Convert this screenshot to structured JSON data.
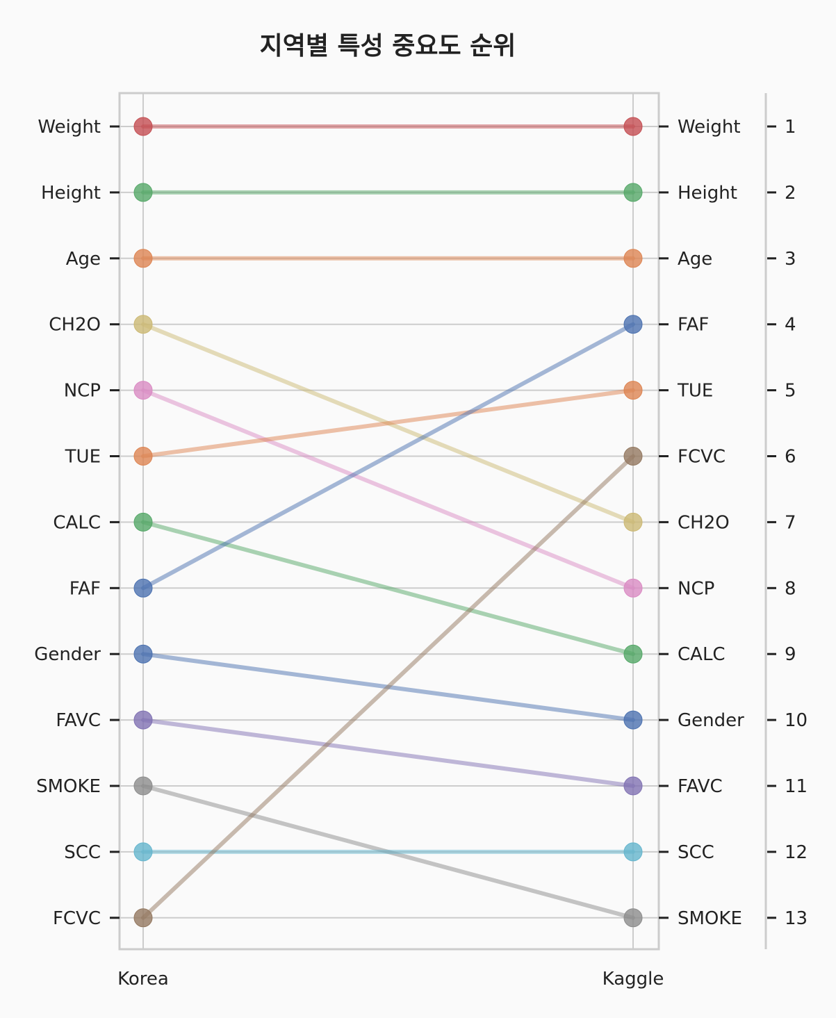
{
  "chart_data": {
    "type": "line",
    "title": "지역별 특성 중요도 순위",
    "x": [
      "Korea",
      "Kaggle"
    ],
    "ranks": [
      "1",
      "2",
      "3",
      "4",
      "5",
      "6",
      "7",
      "8",
      "9",
      "10",
      "11",
      "12",
      "13"
    ],
    "series": [
      {
        "name": "Weight",
        "values": [
          1,
          1
        ],
        "color": "#c44e52"
      },
      {
        "name": "Height",
        "values": [
          2,
          2
        ],
        "color": "#55a868"
      },
      {
        "name": "Age",
        "values": [
          3,
          3
        ],
        "color": "#dd8452"
      },
      {
        "name": "CH2O",
        "values": [
          4,
          7
        ],
        "color": "#ccb974"
      },
      {
        "name": "NCP",
        "values": [
          5,
          8
        ],
        "color": "#da8bc3"
      },
      {
        "name": "TUE",
        "values": [
          6,
          5
        ],
        "color": "#dd8452"
      },
      {
        "name": "CALC",
        "values": [
          7,
          9
        ],
        "color": "#55a868"
      },
      {
        "name": "FAF",
        "values": [
          8,
          4
        ],
        "color": "#4c72b0"
      },
      {
        "name": "Gender",
        "values": [
          9,
          10
        ],
        "color": "#4c72b0"
      },
      {
        "name": "FAVC",
        "values": [
          10,
          11
        ],
        "color": "#8172b3"
      },
      {
        "name": "SMOKE",
        "values": [
          11,
          13
        ],
        "color": "#8c8c8c"
      },
      {
        "name": "SCC",
        "values": [
          12,
          12
        ],
        "color": "#64b5cd"
      },
      {
        "name": "FCVC",
        "values": [
          13,
          6
        ],
        "color": "#937860"
      }
    ],
    "ylim": [
      13,
      1
    ],
    "grid": true
  }
}
